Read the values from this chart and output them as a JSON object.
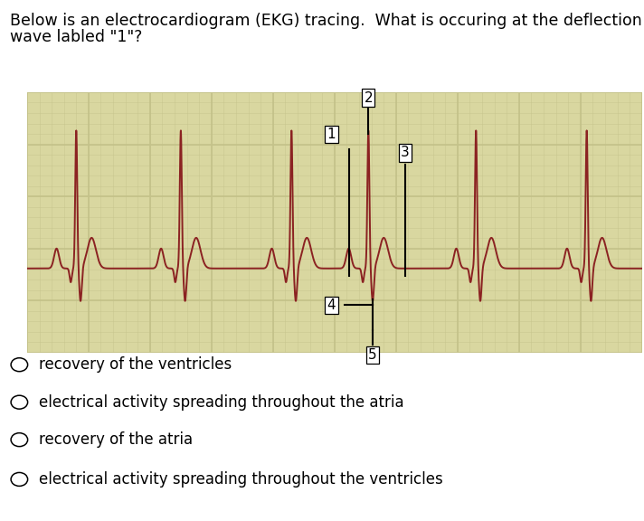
{
  "title_line1": "Below is an electrocardiogram (EKG) tracing.  What is occuring at the deflection",
  "title_line2": "wave labled \"1\"?",
  "title_fontsize": 12.5,
  "bg_color": "#d9d7a0",
  "grid_major_color": "#c4c28a",
  "ekg_color": "#8b2222",
  "answer_options": [
    "recovery of the ventricles",
    "electrical activity spreading throughout the atria",
    "recovery of the atria",
    "electrical activity spreading throughout the ventricles"
  ],
  "ekg_xlim": [
    0,
    10
  ],
  "ekg_ylim": [
    -0.55,
    1.15
  ],
  "beat_positions": [
    0.8,
    2.5,
    4.3,
    5.55,
    7.3,
    9.1
  ],
  "p_amp": 0.13,
  "p_sig": 0.04,
  "q_amp": -0.09,
  "q_off": -0.09,
  "q_sig": 0.018,
  "r_amp": 0.9,
  "r_sig": 0.018,
  "s_amp": -0.22,
  "s_off": 0.07,
  "s_sig": 0.02,
  "t_amp": 0.2,
  "t_off": 0.25,
  "t_sig": 0.07,
  "p_off": -0.32,
  "baseline": 0.0,
  "ann_color": "#000000",
  "ann_lw": 1.5,
  "label_fontsize": 11
}
